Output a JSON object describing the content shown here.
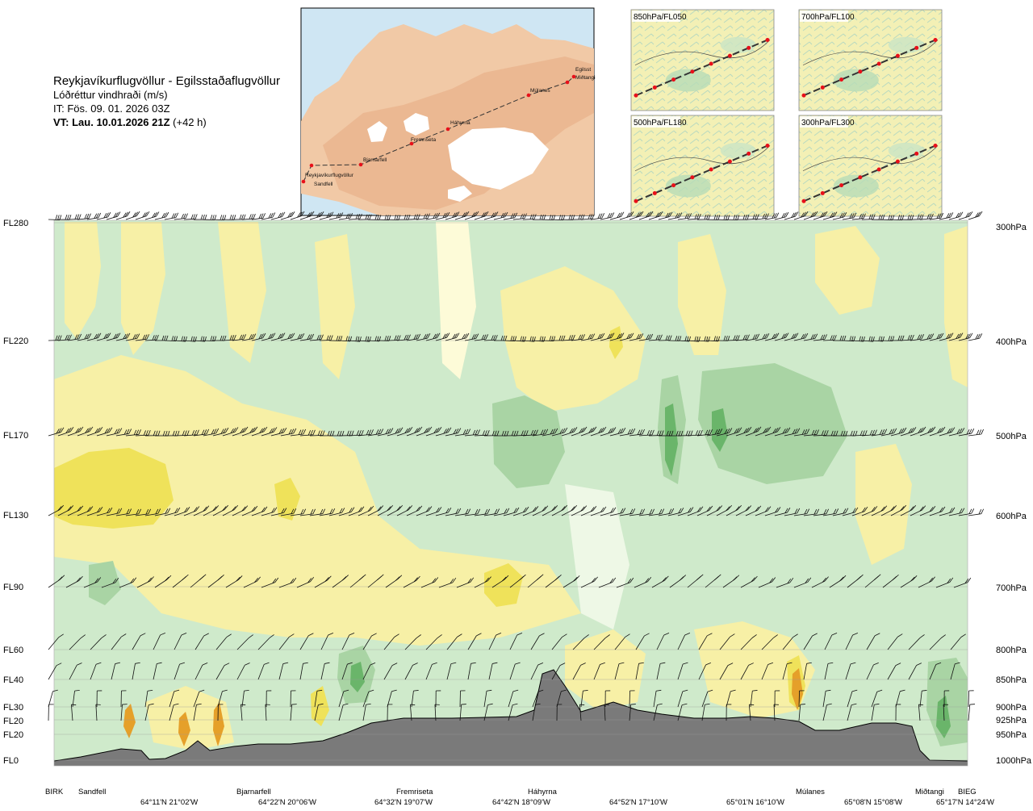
{
  "header": {
    "route": "Reykjavíkurflugvöllur - Egilsstaðaflugvöllur",
    "product": "Lóðréttur vindhraði (m/s)",
    "issue_time": "IT: Fös. 09. 01. 2026 03Z",
    "valid_label": "VT: Lau. 10.01.2026 21Z",
    "lead_time": " (+42 h)"
  },
  "map": {
    "stations": [
      "Reykjavíkurflugvöllur",
      "Sandfell",
      "Bjarnarfell",
      "Fremriseta",
      "Háhyrna",
      "Múlanes",
      "Egilsst",
      "Miðtangi"
    ],
    "route_color": "#e8101a"
  },
  "insets": [
    {
      "label": "850hPa/FL050"
    },
    {
      "label": "700hPa/FL100"
    },
    {
      "label": "500hPa/FL180"
    },
    {
      "label": "300hPa/FL300"
    }
  ],
  "chart_data": {
    "type": "heatmap",
    "description_of_field": "vertical wind speed cross-section along route",
    "flight_levels": [
      "FL280",
      "FL220",
      "FL170",
      "FL130",
      "FL90",
      "FL60",
      "FL40",
      "FL30",
      "FL20",
      "FL20",
      "FL0"
    ],
    "pressure_levels": [
      "300hPa",
      "400hPa",
      "500hPa",
      "600hPa",
      "700hPa",
      "800hPa",
      "850hPa",
      "900hPa",
      "925hPa",
      "950hPa",
      "1000hPa"
    ],
    "route_points": [
      "BIRK",
      "Sandfell",
      "Bjarnarfell",
      "Fremriseta",
      "Háhyrna",
      "Múlanes",
      "Miðtangi",
      "BIEG"
    ],
    "coordinates": [
      "64°11'N 21°02'W",
      "64°22'N 20°06'W",
      "64°32'N 19°07'W",
      "64°42'N 18°09'W",
      "64°52'N 17°10'W",
      "65°01'N 16°10'W",
      "65°08'N 15°08'W",
      "65°17'N 14°24'W"
    ],
    "colors": {
      "sink_light": "#eef8e6",
      "sink_1": "#cfeacb",
      "sink_2": "#a9d4a4",
      "sink_3": "#6ab56a",
      "rise_light": "#fdfbd8",
      "rise_1": "#f7f0a6",
      "rise_2": "#efe25a",
      "rise_3": "#e5a02a",
      "terrain": "#7a7a7a"
    },
    "grid": true
  }
}
